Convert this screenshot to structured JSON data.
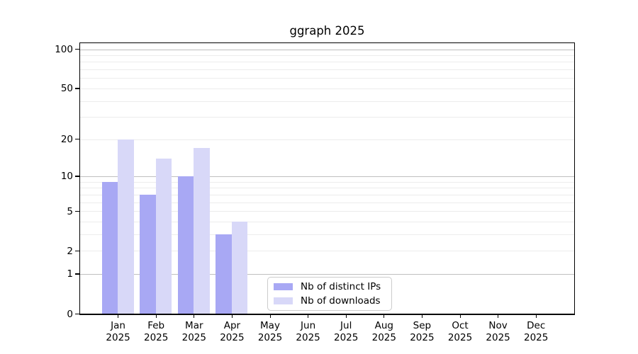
{
  "chart_data": {
    "type": "bar",
    "title": "ggraph 2025",
    "categories": [
      "Jan",
      "Feb",
      "Mar",
      "Apr",
      "May",
      "Jun",
      "Jul",
      "Aug",
      "Sep",
      "Oct",
      "Nov",
      "Dec"
    ],
    "year_label": "2025",
    "series": [
      {
        "name": "Nb of distinct IPs",
        "color": "#a8a8f4",
        "values": [
          9,
          7,
          10,
          3,
          0,
          0,
          0,
          0,
          0,
          0,
          0,
          0
        ]
      },
      {
        "name": "Nb of downloads",
        "color": "#d8d8f8",
        "values": [
          20,
          14,
          17,
          4,
          0,
          0,
          0,
          0,
          0,
          0,
          0,
          0
        ]
      }
    ],
    "y_scale": "log1p",
    "y_ticks": [
      0,
      1,
      2,
      5,
      10,
      20,
      50,
      100
    ],
    "y_major_grid": [
      1,
      10,
      100
    ],
    "y_minor_grid": [
      2,
      3,
      4,
      5,
      6,
      7,
      8,
      9,
      20,
      30,
      40,
      50,
      60,
      70,
      80,
      90
    ],
    "ylim": [
      0,
      110
    ],
    "grid": true,
    "legend_position": "lower center",
    "xlabel": "",
    "ylabel": "",
    "colors": {
      "major_grid": "#bfbfbf",
      "minor_grid": "#ececec",
      "axis": "#000000",
      "text": "#000000",
      "legend_border": "#cccccc"
    }
  }
}
